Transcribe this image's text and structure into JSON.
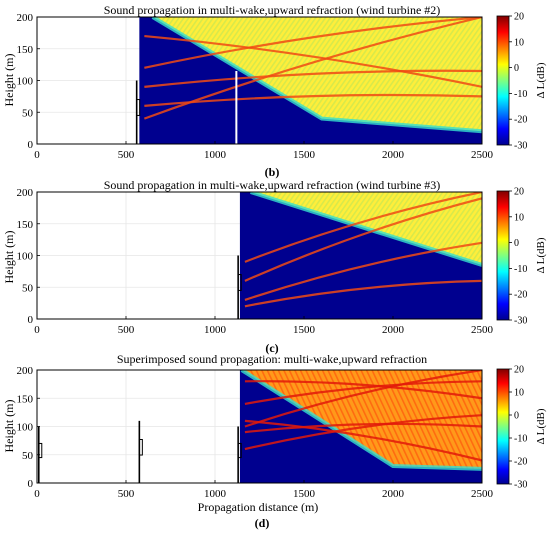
{
  "chart_data": [
    {
      "type": "heatmap",
      "title": "Sound propagation in multi-wake,upward refraction (wind turbine #2)",
      "panel_label": "(b)",
      "xlabel": "",
      "ylabel": "Height (m)",
      "xlim": [
        0,
        2500
      ],
      "ylim": [
        0,
        200
      ],
      "xticks": [
        "0",
        "500",
        "1000",
        "1500",
        "2000",
        "2500"
      ],
      "yticks": [
        "0",
        "50",
        "100",
        "150",
        "200"
      ],
      "grid": true,
      "source_x": 575,
      "shadow_curve": [
        [
          575,
          0
        ],
        [
          650,
          200
        ],
        [
          1600,
          40
        ],
        [
          2500,
          20
        ]
      ],
      "turbines": [
        {
          "x": 560,
          "top": 100
        }
      ],
      "marker_line_x": 1120,
      "colorbar": {
        "label": "Δ L(dB)",
        "min": -30,
        "max": 20,
        "ticks": [
          "20",
          "10",
          "0",
          "-10",
          "-20",
          "-30"
        ]
      }
    },
    {
      "type": "heatmap",
      "title": "Sound propagation in multi-wake,upward refraction (wind turbine #3)",
      "panel_label": "(c)",
      "xlabel": "",
      "ylabel": "Height (m)",
      "xlim": [
        0,
        2500
      ],
      "ylim": [
        0,
        200
      ],
      "xticks": [
        "0",
        "500",
        "1000",
        "1500",
        "2000",
        "2500"
      ],
      "yticks": [
        "0",
        "50",
        "100",
        "150",
        "200"
      ],
      "grid": true,
      "source_x": 1140,
      "shadow_curve": [
        [
          1140,
          0
        ],
        [
          1200,
          200
        ],
        [
          2500,
          85
        ]
      ],
      "turbines": [
        {
          "x": 1130,
          "top": 100
        }
      ],
      "colorbar": {
        "label": "Δ L(dB)",
        "min": -30,
        "max": 20,
        "ticks": [
          "20",
          "10",
          "0",
          "-10",
          "-20",
          "-30"
        ]
      }
    },
    {
      "type": "heatmap",
      "title": "Superimposed sound propagation: multi-wake,upward refraction",
      "panel_label": "(d)",
      "xlabel": "Propagation distance (m)",
      "ylabel": "Height (m)",
      "xlim": [
        0,
        2500
      ],
      "ylim": [
        0,
        200
      ],
      "xticks": [
        "0",
        "500",
        "1000",
        "1500",
        "2000",
        "2500"
      ],
      "yticks": [
        "0",
        "50",
        "100",
        "150",
        "200"
      ],
      "grid": true,
      "source_x": 1140,
      "shadow_curve": [
        [
          1140,
          0
        ],
        [
          1150,
          200
        ],
        [
          2000,
          30
        ],
        [
          2500,
          25
        ]
      ],
      "turbines": [
        {
          "x": 10,
          "top": 100
        },
        {
          "x": 575,
          "top": 110
        },
        {
          "x": 1130,
          "top": 100
        }
      ],
      "colorbar": {
        "label": "Δ L(dB)",
        "min": -30,
        "max": 20,
        "ticks": [
          "20",
          "10",
          "0",
          "-10",
          "-20",
          "-30"
        ]
      }
    }
  ]
}
